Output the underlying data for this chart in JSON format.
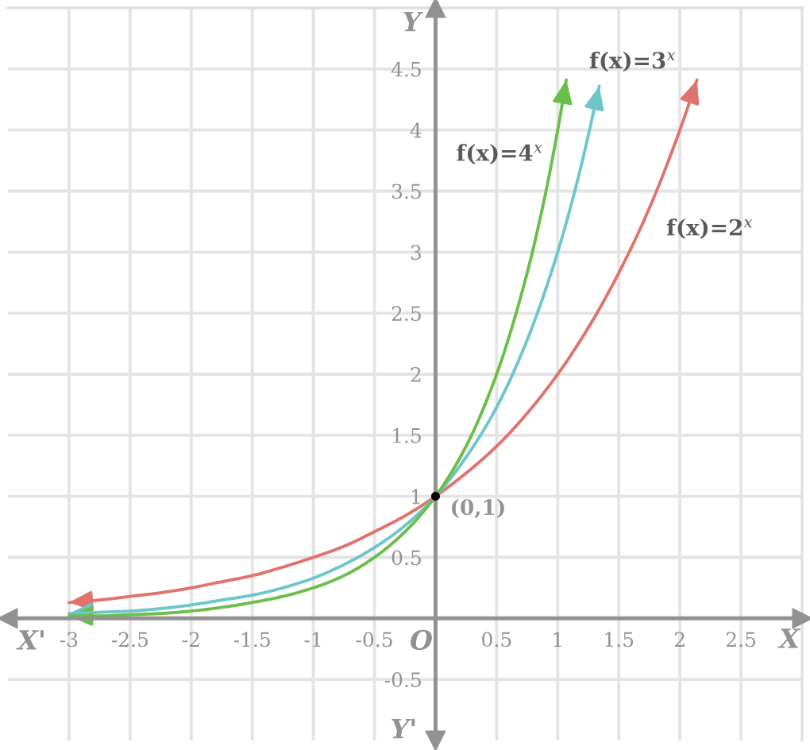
{
  "chart_data": {
    "type": "line",
    "xlabel": "X",
    "ylabel": "Y",
    "xlim": [
      -3.5,
      3
    ],
    "ylim": [
      -1,
      5
    ],
    "xticks": [
      -3,
      -2.5,
      -2,
      -1.5,
      -1,
      -0.5,
      0.5,
      1,
      1.5,
      2,
      2.5
    ],
    "yticks": [
      -0.5,
      0.5,
      1,
      1.5,
      2,
      2.5,
      3,
      3.5,
      4,
      4.5
    ],
    "grid": true,
    "series": [
      {
        "name": "f(x)=2$^{x}$",
        "color": "#e0736b",
        "x": [
          -3,
          -2.75,
          -2.5,
          -2.25,
          -2,
          -1.75,
          -1.5,
          -1.25,
          -1,
          -0.75,
          -0.5,
          -0.25,
          0,
          0.25,
          0.5,
          0.75,
          1,
          1.25,
          1.5,
          1.75,
          2,
          2.14
        ],
        "values": [
          0.13,
          0.15,
          0.18,
          0.21,
          0.25,
          0.3,
          0.35,
          0.42,
          0.5,
          0.59,
          0.71,
          0.84,
          1,
          1.19,
          1.41,
          1.68,
          2,
          2.38,
          2.83,
          3.36,
          4,
          4.41
        ]
      },
      {
        "name": "f(x)=3$^{x}$",
        "color": "#6ec6cb",
        "x": [
          -3,
          -2.75,
          -2.5,
          -2.25,
          -2,
          -1.75,
          -1.5,
          -1.25,
          -1,
          -0.75,
          -0.5,
          -0.25,
          0,
          0.25,
          0.5,
          0.75,
          1,
          1.1,
          1.2,
          1.34
        ],
        "values": [
          0.04,
          0.05,
          0.06,
          0.08,
          0.11,
          0.15,
          0.19,
          0.25,
          0.33,
          0.44,
          0.58,
          0.76,
          1,
          1.32,
          1.73,
          2.28,
          3,
          3.35,
          3.74,
          4.36
        ]
      },
      {
        "name": "f(x)=4$^{x}$",
        "color": "#6abf4b",
        "x": [
          -3,
          -2.75,
          -2.5,
          -2.25,
          -2,
          -1.75,
          -1.5,
          -1.25,
          -1,
          -0.75,
          -0.5,
          -0.25,
          0,
          0.25,
          0.5,
          0.75,
          0.9,
          1,
          1.07
        ],
        "values": [
          0.02,
          0.02,
          0.03,
          0.04,
          0.06,
          0.09,
          0.13,
          0.18,
          0.25,
          0.35,
          0.5,
          0.71,
          1,
          1.41,
          2,
          2.83,
          3.48,
          4,
          4.41
        ]
      }
    ],
    "annotations": [
      "X'",
      "Y'",
      "O",
      {
        "text": "(0,1)",
        "x": 0,
        "y": 1
      }
    ]
  }
}
